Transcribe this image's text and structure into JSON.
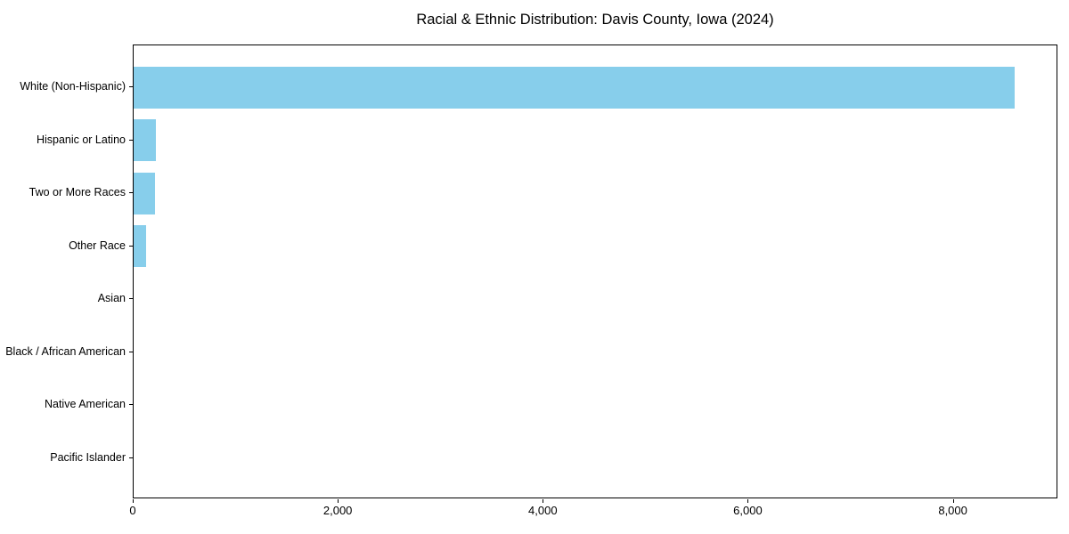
{
  "chart_data": {
    "type": "bar",
    "orientation": "horizontal",
    "title": "Racial & Ethnic Distribution: Davis County, Iowa (2024)",
    "categories": [
      "White (Non-Hispanic)",
      "Hispanic or Latino",
      "Two or More Races",
      "Other Race",
      "Asian",
      "Black / African American",
      "Native American",
      "Pacific Islander"
    ],
    "values": [
      8590,
      220,
      205,
      120,
      0,
      0,
      0,
      0
    ],
    "xlabel": "",
    "ylabel": "",
    "xlim": [
      0,
      9020
    ],
    "xticks": [
      0,
      2000,
      4000,
      6000,
      8000
    ],
    "xtick_labels": [
      "0",
      "2,000",
      "4,000",
      "6,000",
      "8,000"
    ],
    "bar_color": "#87CEEB",
    "grid": false,
    "legend_position": "none"
  }
}
